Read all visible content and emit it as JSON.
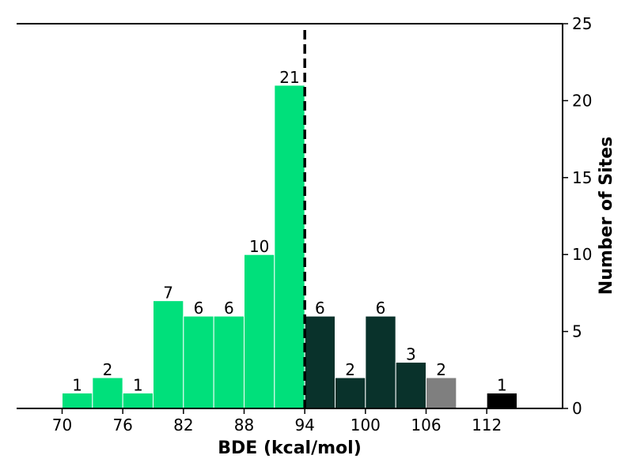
{
  "chart_data": {
    "type": "bar",
    "bin_width": 3,
    "x_start": 70,
    "xlim": [
      65.5,
      119.5
    ],
    "ylim": [
      0,
      25
    ],
    "xlabel": "BDE (kcal/mol)",
    "ylabel": "Number of Sites",
    "x_ticks": [
      70,
      76,
      82,
      88,
      94,
      100,
      106,
      112
    ],
    "y_ticks": [
      0,
      5,
      10,
      15,
      20,
      25
    ],
    "threshold": 94,
    "bars": [
      {
        "x": 70,
        "value": 1,
        "color": "#00e07b"
      },
      {
        "x": 73,
        "value": 2,
        "color": "#00e07b"
      },
      {
        "x": 76,
        "value": 1,
        "color": "#00e07b"
      },
      {
        "x": 79,
        "value": 7,
        "color": "#00e07b"
      },
      {
        "x": 82,
        "value": 6,
        "color": "#00e07b"
      },
      {
        "x": 85,
        "value": 6,
        "color": "#00e07b"
      },
      {
        "x": 88,
        "value": 10,
        "color": "#00e07b"
      },
      {
        "x": 91,
        "value": 21,
        "color": "#00e07b"
      },
      {
        "x": 94,
        "value": 6,
        "color": "#09322b"
      },
      {
        "x": 97,
        "value": 2,
        "color": "#09322b"
      },
      {
        "x": 100,
        "value": 6,
        "color": "#09322b"
      },
      {
        "x": 103,
        "value": 3,
        "color": "#09322b"
      },
      {
        "x": 106,
        "value": 2,
        "color": "#7f7f7f"
      },
      {
        "x": 112,
        "value": 1,
        "color": "#000000"
      }
    ],
    "grid": false,
    "y_axis_side": "right"
  }
}
